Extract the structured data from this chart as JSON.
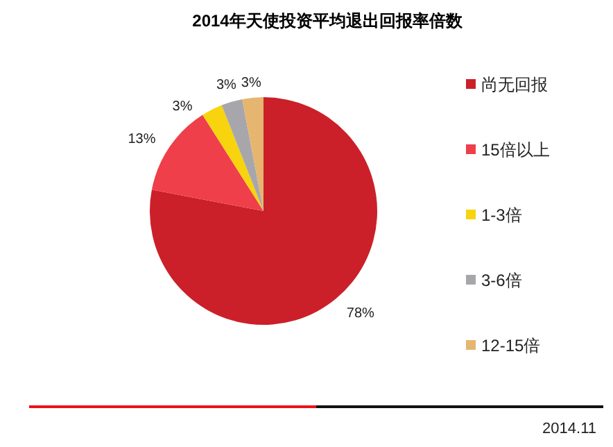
{
  "chart_data": {
    "type": "pie",
    "title": "2014年天使投资平均退出回报率倍数",
    "categories": [
      "尚无回报",
      "15倍以上",
      "1-3倍",
      "3-6倍",
      "12-15倍"
    ],
    "values": [
      78,
      13,
      3,
      3,
      3
    ],
    "value_labels": [
      "78%",
      "13%",
      "3%",
      "3%",
      "3%"
    ],
    "colors": [
      "#cb2029",
      "#ee3f4b",
      "#f7d40e",
      "#a7a7ab",
      "#e6b56f"
    ],
    "legend": "right",
    "annotations": [
      "2014.11"
    ]
  }
}
